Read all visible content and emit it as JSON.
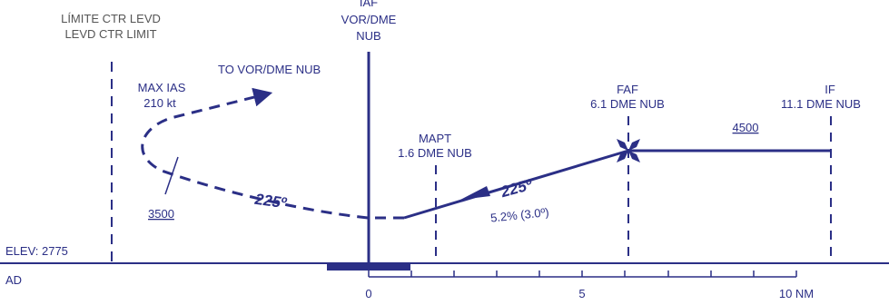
{
  "colors": {
    "primary": "#2b2f86",
    "secondary": "#555555",
    "background": "#ffffff"
  },
  "ctr_limit": {
    "line1": "LÍMITE CTR LEVD",
    "line2": "LEVD CTR LIMIT"
  },
  "iaf": {
    "line1": "IAF",
    "line2": "VOR/DME",
    "line3": "NUB"
  },
  "to_vor_label": "TO VOR/DME NUB",
  "max_ias": {
    "line1": "MAX IAS",
    "line2": "210 kt"
  },
  "faf": {
    "line1": "FAF",
    "line2": "6.1 DME NUB"
  },
  "if_fix": {
    "line1": "IF",
    "line2": "11.1 DME NUB"
  },
  "altitude_4500": "4500",
  "mapt": {
    "line1": "MAPT",
    "line2": "1.6 DME NUB"
  },
  "final_course": "225º",
  "gradient": "5.2% (3.0º)",
  "missed_course": "225º",
  "missed_altitude": "3500",
  "elevation": "ELEV: 2775",
  "aerodrome": "AD",
  "scale": {
    "zero": "0",
    "five": "5",
    "ten": "10 NM"
  }
}
